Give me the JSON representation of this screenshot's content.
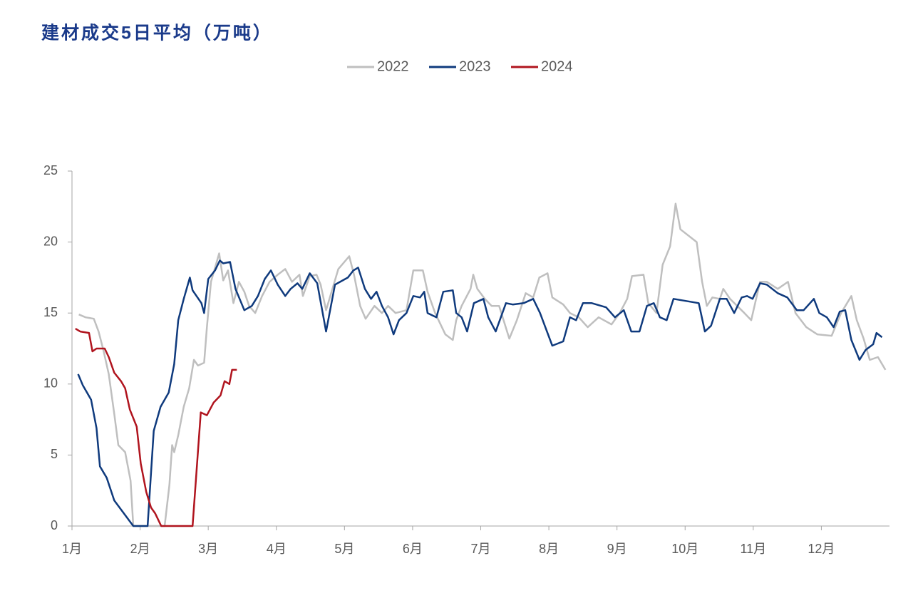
{
  "chart_data": {
    "type": "line",
    "title": "建材成交5日平均（万吨）",
    "xlim": [
      1,
      13
    ],
    "ylim": [
      0,
      25
    ],
    "yticks": [
      0,
      5,
      10,
      15,
      20,
      25
    ],
    "xticks": [
      {
        "value": 1,
        "label": "1月"
      },
      {
        "value": 2,
        "label": "2月"
      },
      {
        "value": 3,
        "label": "3月"
      },
      {
        "value": 4,
        "label": "4月"
      },
      {
        "value": 5,
        "label": "5月"
      },
      {
        "value": 6,
        "label": "6月"
      },
      {
        "value": 7,
        "label": "7月"
      },
      {
        "value": 8,
        "label": "8月"
      },
      {
        "value": 9,
        "label": "9月"
      },
      {
        "value": 10,
        "label": "10月"
      },
      {
        "value": 11,
        "label": "11月"
      },
      {
        "value": 12,
        "label": "12月"
      }
    ],
    "legend": "top",
    "series": [
      {
        "name": "2022",
        "color": "#bfbfbf",
        "x": [
          1.1,
          1.2,
          1.32,
          1.39,
          1.46,
          1.54,
          1.62,
          1.68,
          1.78,
          1.86,
          1.9,
          2.36,
          2.43,
          2.47,
          2.5,
          2.56,
          2.64,
          2.72,
          2.79,
          2.85,
          2.94,
          2.98,
          3.04,
          3.16,
          3.22,
          3.29,
          3.37,
          3.45,
          3.53,
          3.6,
          3.69,
          3.79,
          3.9,
          4.02,
          4.13,
          4.23,
          4.34,
          4.39,
          4.49,
          4.59,
          4.65,
          4.73,
          4.81,
          4.91,
          5.07,
          5.14,
          5.23,
          5.31,
          5.44,
          5.55,
          5.64,
          5.75,
          5.91,
          6.01,
          6.15,
          6.22,
          6.33,
          6.48,
          6.59,
          6.64,
          6.72,
          6.85,
          6.89,
          6.95,
          7.06,
          7.16,
          7.27,
          7.42,
          7.53,
          7.66,
          7.77,
          7.86,
          7.98,
          8.05,
          8.21,
          8.31,
          8.44,
          8.57,
          8.73,
          8.92,
          9.04,
          9.15,
          9.22,
          9.39,
          9.46,
          9.58,
          9.67,
          9.78,
          9.86,
          9.93,
          10.17,
          10.25,
          10.32,
          10.4,
          10.51,
          10.56,
          10.66,
          10.87,
          10.97,
          11.1,
          11.2,
          11.36,
          11.51,
          11.62,
          11.78,
          11.94,
          12.15,
          12.29,
          12.44,
          12.52,
          12.62,
          12.71,
          12.83,
          12.94
        ],
        "values": [
          14.9,
          14.7,
          14.6,
          13.7,
          12.4,
          10.7,
          7.9,
          5.7,
          5.2,
          3.2,
          0,
          0,
          2.9,
          5.7,
          5.2,
          6.4,
          8.4,
          9.7,
          11.7,
          11.3,
          11.5,
          14.0,
          17.2,
          19.2,
          17.3,
          18.0,
          15.7,
          17.2,
          16.5,
          15.5,
          15.0,
          16.2,
          17.2,
          17.7,
          18.1,
          17.2,
          17.7,
          16.2,
          17.6,
          17.7,
          17.0,
          15.2,
          16.5,
          18.1,
          19.0,
          17.7,
          15.5,
          14.6,
          15.5,
          15.0,
          15.5,
          15.0,
          15.2,
          18.0,
          18.0,
          16.5,
          15.0,
          13.5,
          13.1,
          14.5,
          15.5,
          16.7,
          17.7,
          16.7,
          16.0,
          15.5,
          15.5,
          13.2,
          14.5,
          16.4,
          16.1,
          17.5,
          17.8,
          16.1,
          15.6,
          15.0,
          14.7,
          14.0,
          14.7,
          14.2,
          15.0,
          16.0,
          17.6,
          17.7,
          15.7,
          15.0,
          18.4,
          19.7,
          22.7,
          20.9,
          20.0,
          17.2,
          15.5,
          16.1,
          16.0,
          16.7,
          16.0,
          15.0,
          14.5,
          17.2,
          17.2,
          16.7,
          17.2,
          15.0,
          14.0,
          13.5,
          13.4,
          15.0,
          16.2,
          14.5,
          13.2,
          11.7,
          11.9,
          11.0
        ]
      },
      {
        "name": "2023",
        "color": "#0f3a7d",
        "x": [
          1.09,
          1.16,
          1.28,
          1.36,
          1.41,
          1.51,
          1.62,
          1.9,
          2.11,
          2.2,
          2.3,
          2.42,
          2.5,
          2.56,
          2.64,
          2.73,
          2.77,
          2.9,
          2.94,
          3.0,
          3.1,
          3.17,
          3.22,
          3.32,
          3.4,
          3.53,
          3.64,
          3.73,
          3.83,
          3.92,
          4.02,
          4.13,
          4.21,
          4.31,
          4.38,
          4.49,
          4.6,
          4.73,
          4.86,
          5.05,
          5.13,
          5.2,
          5.3,
          5.39,
          5.47,
          5.55,
          5.64,
          5.72,
          5.8,
          5.91,
          6.01,
          6.11,
          6.17,
          6.22,
          6.35,
          6.45,
          6.59,
          6.64,
          6.72,
          6.8,
          6.9,
          7.04,
          7.11,
          7.22,
          7.37,
          7.47,
          7.63,
          7.77,
          7.87,
          8.05,
          8.21,
          8.31,
          8.4,
          8.5,
          8.63,
          8.84,
          8.97,
          9.1,
          9.21,
          9.33,
          9.44,
          9.54,
          9.63,
          9.73,
          9.83,
          10.2,
          10.29,
          10.38,
          10.51,
          10.61,
          10.72,
          10.83,
          10.91,
          10.99,
          11.1,
          11.2,
          11.36,
          11.5,
          11.64,
          11.74,
          11.89,
          11.97,
          12.08,
          12.18,
          12.27,
          12.35,
          12.44,
          12.56,
          12.65,
          12.76,
          12.81,
          12.89
        ],
        "values": [
          10.7,
          9.9,
          8.9,
          6.9,
          4.2,
          3.4,
          1.8,
          0,
          0,
          6.7,
          8.4,
          9.4,
          11.4,
          14.5,
          16.0,
          17.5,
          16.6,
          15.7,
          15.0,
          17.4,
          18.0,
          18.7,
          18.5,
          18.6,
          16.7,
          15.2,
          15.5,
          16.2,
          17.4,
          18.0,
          17.0,
          16.2,
          16.7,
          17.1,
          16.7,
          17.8,
          17.1,
          13.7,
          17.0,
          17.5,
          18.0,
          18.2,
          16.7,
          16.0,
          16.5,
          15.5,
          14.7,
          13.5,
          14.5,
          15.0,
          16.2,
          16.1,
          16.5,
          15.0,
          14.7,
          16.5,
          16.6,
          15.0,
          14.7,
          13.7,
          15.7,
          16.0,
          14.7,
          13.7,
          15.7,
          15.6,
          15.7,
          16.0,
          15.0,
          12.7,
          13.0,
          14.7,
          14.5,
          15.7,
          15.7,
          15.4,
          14.7,
          15.2,
          13.7,
          13.7,
          15.5,
          15.7,
          14.7,
          14.5,
          16.0,
          15.7,
          13.7,
          14.1,
          16.0,
          16.0,
          15.0,
          16.1,
          16.2,
          16.0,
          17.1,
          17.0,
          16.4,
          16.1,
          15.2,
          15.2,
          16.0,
          15.0,
          14.7,
          14.0,
          15.1,
          15.2,
          13.1,
          11.7,
          12.4,
          12.8,
          13.6,
          13.3
        ]
      },
      {
        "name": "2024",
        "color": "#b0141e",
        "x": [
          1.05,
          1.12,
          1.25,
          1.3,
          1.36,
          1.48,
          1.54,
          1.62,
          1.72,
          1.78,
          1.85,
          1.95,
          2.01,
          2.09,
          2.16,
          2.22,
          2.31,
          2.77,
          2.89,
          2.98,
          3.08,
          3.18,
          3.24,
          3.31,
          3.35,
          3.42
        ],
        "values": [
          13.9,
          13.7,
          13.6,
          12.3,
          12.5,
          12.5,
          11.9,
          10.8,
          10.2,
          9.7,
          8.2,
          7.0,
          4.4,
          2.4,
          1.3,
          0.9,
          0,
          0,
          8.0,
          7.8,
          8.7,
          9.2,
          10.2,
          10.0,
          11.0,
          11.0
        ]
      }
    ]
  }
}
